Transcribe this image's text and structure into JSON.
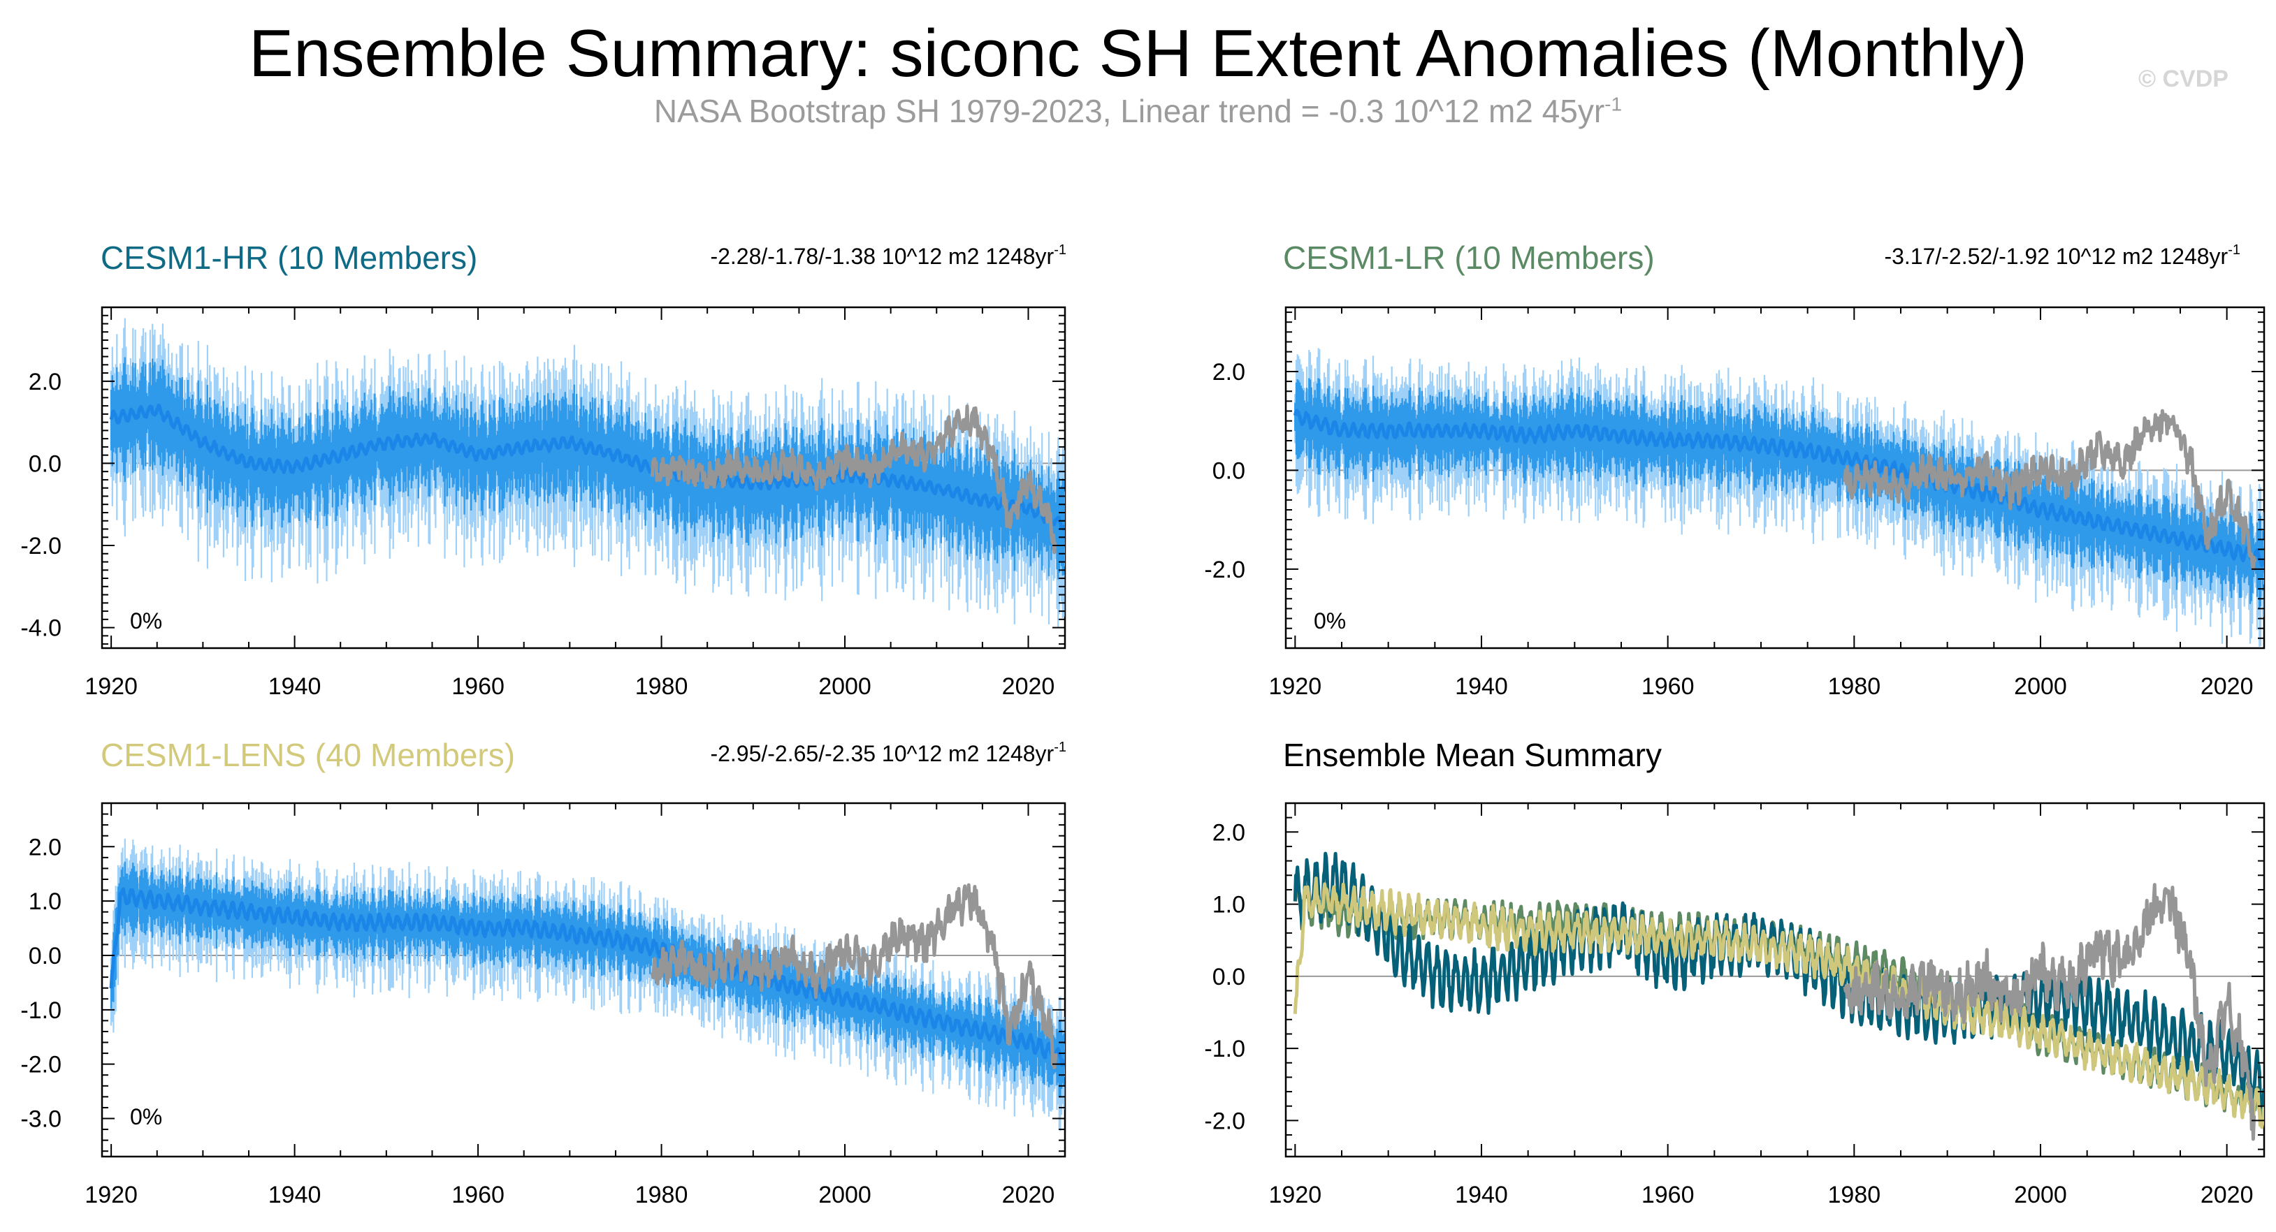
{
  "title": "Ensemble Summary: siconc SH Extent Anomalies (Monthly)",
  "subtitle": {
    "text": "NASA Bootstrap SH 1979-2023, Linear trend = -0.3 10^12 m2 45yr",
    "superscript": "-1"
  },
  "copyright": "© CVDP",
  "colors": {
    "hr_title": "#0e6a85",
    "lr_title": "#5a8a63",
    "lens_title": "#d2c97a",
    "ensemble_light": "#9fd0f7",
    "ensemble_mid": "#2f99ea",
    "ensemble_mean": "#1c86e8",
    "observations": "#969696",
    "mean_hr": "#056078",
    "mean_lr": "#5d8a62",
    "mean_lens": "#cfc77b",
    "zero_line": "#9a9a9a"
  },
  "chart_data": [
    {
      "id": "cesm1-hr",
      "type": "line",
      "title": "CESM1-HR (10 Members)",
      "trend_label": "-2.28/-1.78/-1.38 10^12 m2 1248yr",
      "trend_sup": "-1",
      "percent_label": "0%",
      "xlim": [
        1919,
        2024
      ],
      "ylim": [
        -4.5,
        3.8
      ],
      "xticks": [
        1920,
        1940,
        1960,
        1980,
        2000,
        2020
      ],
      "yticks": [
        2.0,
        0.0,
        -2.0,
        -4.0
      ],
      "ytick_labels": [
        "2.0",
        "0.0",
        "-2.0",
        "-4.0"
      ],
      "series": [
        {
          "name": "Ensemble mean",
          "x": [
            1920,
            1925,
            1930,
            1935,
            1940,
            1945,
            1950,
            1955,
            1960,
            1965,
            1970,
            1975,
            1980,
            1985,
            1990,
            1995,
            2000,
            2005,
            2010,
            2015,
            2020,
            2024
          ],
          "values": [
            1.1,
            1.3,
            0.5,
            0.0,
            -0.1,
            0.2,
            0.5,
            0.6,
            0.2,
            0.4,
            0.5,
            0.2,
            -0.2,
            -0.4,
            -0.5,
            -0.4,
            -0.3,
            -0.4,
            -0.6,
            -0.9,
            -1.1,
            -1.5
          ]
        },
        {
          "name": "Observations (NASA Bootstrap)",
          "x": [
            1979,
            1982,
            1985,
            1988,
            1991,
            1994,
            1997,
            2000,
            2003,
            2006,
            2009,
            2012,
            2014,
            2016,
            2018,
            2020,
            2022,
            2023
          ],
          "values": [
            -0.3,
            -0.1,
            -0.4,
            0.0,
            -0.3,
            0.0,
            -0.4,
            0.1,
            -0.2,
            0.4,
            0.2,
            0.9,
            1.1,
            0.2,
            -1.4,
            -0.4,
            -1.2,
            -2.0
          ]
        }
      ]
    },
    {
      "id": "cesm1-lr",
      "type": "line",
      "title": "CESM1-LR (10 Members)",
      "trend_label": "-3.17/-2.52/-1.92 10^12 m2 1248yr",
      "trend_sup": "-1",
      "percent_label": "0%",
      "xlim": [
        1919,
        2024
      ],
      "ylim": [
        -3.6,
        3.3
      ],
      "xticks": [
        1920,
        1940,
        1960,
        1980,
        2000,
        2020
      ],
      "yticks": [
        2.0,
        0.0,
        -2.0
      ],
      "ytick_labels": [
        "2.0",
        "0.0",
        "-2.0"
      ],
      "series": [
        {
          "name": "Ensemble mean",
          "x": [
            1920,
            1925,
            1930,
            1935,
            1940,
            1945,
            1950,
            1955,
            1960,
            1965,
            1970,
            1975,
            1980,
            1985,
            1990,
            1995,
            2000,
            2005,
            2010,
            2015,
            2020,
            2024
          ],
          "values": [
            1.1,
            0.8,
            0.8,
            0.8,
            0.8,
            0.7,
            0.8,
            0.7,
            0.6,
            0.6,
            0.5,
            0.4,
            0.2,
            0.0,
            -0.3,
            -0.5,
            -0.8,
            -1.0,
            -1.2,
            -1.4,
            -1.6,
            -1.8
          ]
        },
        {
          "name": "Observations (NASA Bootstrap)",
          "x": [
            1979,
            1982,
            1985,
            1988,
            1991,
            1994,
            1997,
            2000,
            2003,
            2006,
            2009,
            2012,
            2014,
            2016,
            2018,
            2020,
            2022,
            2023
          ],
          "values": [
            -0.3,
            -0.1,
            -0.4,
            0.0,
            -0.3,
            0.0,
            -0.4,
            0.1,
            -0.2,
            0.4,
            0.2,
            0.9,
            1.1,
            0.2,
            -1.4,
            -0.4,
            -1.2,
            -2.0
          ]
        }
      ]
    },
    {
      "id": "cesm1-lens",
      "type": "line",
      "title": "CESM1-LENS (40 Members)",
      "trend_label": "-2.95/-2.65/-2.35 10^12 m2 1248yr",
      "trend_sup": "-1",
      "percent_label": "0%",
      "xlim": [
        1919,
        2024
      ],
      "ylim": [
        -3.7,
        2.8
      ],
      "xticks": [
        1920,
        1940,
        1960,
        1980,
        2000,
        2020
      ],
      "yticks": [
        2.0,
        1.0,
        0.0,
        -1.0,
        -2.0,
        -3.0
      ],
      "ytick_labels": [
        "2.0",
        "1.0",
        "0.0",
        "-1.0",
        "-2.0",
        "-3.0"
      ],
      "series": [
        {
          "name": "Ensemble mean",
          "x": [
            1920,
            1921,
            1925,
            1930,
            1935,
            1940,
            1945,
            1950,
            1955,
            1960,
            1965,
            1970,
            1975,
            1980,
            1985,
            1990,
            1995,
            2000,
            2005,
            2010,
            2015,
            2020,
            2024
          ],
          "values": [
            -0.6,
            1.1,
            1.0,
            0.9,
            0.8,
            0.7,
            0.6,
            0.6,
            0.6,
            0.5,
            0.5,
            0.4,
            0.3,
            0.1,
            -0.2,
            -0.4,
            -0.6,
            -0.8,
            -1.0,
            -1.2,
            -1.4,
            -1.6,
            -1.9
          ]
        },
        {
          "name": "Observations (NASA Bootstrap)",
          "x": [
            1979,
            1982,
            1985,
            1988,
            1991,
            1994,
            1997,
            2000,
            2003,
            2006,
            2009,
            2012,
            2014,
            2016,
            2018,
            2020,
            2022,
            2023
          ],
          "values": [
            -0.3,
            -0.1,
            -0.4,
            0.0,
            -0.3,
            0.0,
            -0.4,
            0.1,
            -0.2,
            0.4,
            0.2,
            0.9,
            1.1,
            0.2,
            -1.4,
            -0.4,
            -1.2,
            -2.0
          ]
        }
      ]
    },
    {
      "id": "ensemble-mean-summary",
      "type": "line",
      "title": "Ensemble Mean Summary",
      "xlim": [
        1919,
        2024
      ],
      "ylim": [
        -2.5,
        2.4
      ],
      "xticks": [
        1920,
        1940,
        1960,
        1980,
        2000,
        2020
      ],
      "yticks": [
        2.0,
        1.0,
        0.0,
        -1.0,
        -2.0
      ],
      "ytick_labels": [
        "2.0",
        "1.0",
        "0.0",
        "-1.0",
        "-2.0"
      ],
      "series": [
        {
          "name": "CESM1-HR mean",
          "x": [
            1920,
            1925,
            1930,
            1935,
            1940,
            1945,
            1950,
            1955,
            1960,
            1965,
            1970,
            1975,
            1980,
            1985,
            1990,
            1995,
            2000,
            2005,
            2010,
            2015,
            2020,
            2024
          ],
          "values": [
            1.1,
            1.3,
            0.5,
            0.0,
            -0.1,
            0.2,
            0.5,
            0.6,
            0.2,
            0.4,
            0.5,
            0.2,
            -0.2,
            -0.4,
            -0.5,
            -0.4,
            -0.3,
            -0.4,
            -0.6,
            -0.9,
            -1.1,
            -1.5
          ]
        },
        {
          "name": "CESM1-LR mean",
          "x": [
            1920,
            1925,
            1930,
            1935,
            1940,
            1945,
            1950,
            1955,
            1960,
            1965,
            1970,
            1975,
            1980,
            1985,
            1990,
            1995,
            2000,
            2005,
            2010,
            2015,
            2020,
            2024
          ],
          "values": [
            1.1,
            0.8,
            0.8,
            0.8,
            0.8,
            0.7,
            0.8,
            0.7,
            0.6,
            0.6,
            0.5,
            0.4,
            0.2,
            0.0,
            -0.3,
            -0.5,
            -0.8,
            -1.0,
            -1.2,
            -1.4,
            -1.6,
            -1.8
          ]
        },
        {
          "name": "CESM1-LENS mean",
          "x": [
            1920,
            1921,
            1925,
            1930,
            1935,
            1940,
            1945,
            1950,
            1955,
            1960,
            1965,
            1970,
            1975,
            1980,
            1985,
            1990,
            1995,
            2000,
            2005,
            2010,
            2015,
            2020,
            2024
          ],
          "values": [
            -0.6,
            1.1,
            1.0,
            0.9,
            0.8,
            0.7,
            0.6,
            0.6,
            0.6,
            0.5,
            0.5,
            0.4,
            0.3,
            0.1,
            -0.2,
            -0.4,
            -0.6,
            -0.8,
            -1.0,
            -1.2,
            -1.4,
            -1.6,
            -1.9
          ]
        },
        {
          "name": "Observations (NASA Bootstrap)",
          "x": [
            1979,
            1982,
            1985,
            1988,
            1991,
            1994,
            1997,
            2000,
            2003,
            2006,
            2009,
            2012,
            2014,
            2016,
            2018,
            2020,
            2022,
            2023
          ],
          "values": [
            -0.3,
            -0.1,
            -0.4,
            0.0,
            -0.3,
            0.0,
            -0.4,
            0.1,
            -0.2,
            0.4,
            0.2,
            0.9,
            1.1,
            0.2,
            -1.4,
            -0.4,
            -1.2,
            -2.0
          ]
        }
      ]
    }
  ]
}
